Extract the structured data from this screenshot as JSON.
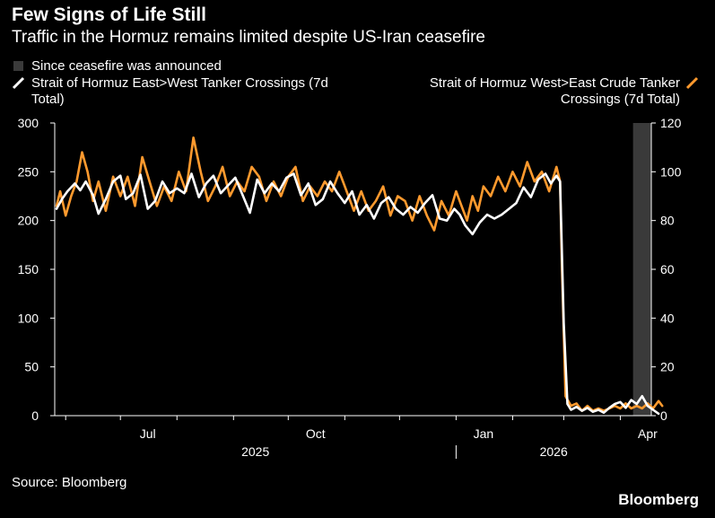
{
  "header": {
    "title": "Few Signs of Life Still",
    "subtitle": "Traffic in the Hormuz remains limited despite US-Iran ceasefire"
  },
  "legend": {
    "shade_label": "Since ceasefire was announced",
    "white_label": "Strait of Hormuz East>West Tanker Crossings (7d Total)",
    "orange_label": "Strait of Hormuz West>East Crude Tanker Crossings (7d Total)"
  },
  "footer": {
    "source": "Source: Bloomberg",
    "brand": "Bloomberg"
  },
  "colors": {
    "background": "#000000",
    "white_series": "#ffffff",
    "orange_series": "#ff9a2e",
    "shade": "#3a3a3a",
    "axis_text": "#ffffff"
  },
  "chart_data": {
    "type": "line",
    "x_ticks": [
      "Jul",
      "Oct",
      "Jan",
      "Apr"
    ],
    "x_tick_values": [
      "2025-07-01",
      "2025-10-01",
      "2026-01-01",
      "2026-04-01"
    ],
    "year_labels": [
      "2025",
      "2026"
    ],
    "x_range": [
      "2025-05-26",
      "2026-04-18"
    ],
    "y_left": {
      "lim": [
        0,
        300
      ],
      "ticks": [
        0,
        50,
        100,
        150,
        200,
        250,
        300
      ]
    },
    "y_right": {
      "lim": [
        0,
        120
      ],
      "ticks": [
        0,
        20,
        40,
        60,
        80,
        100,
        120
      ]
    },
    "shaded_region": {
      "label": "Since ceasefire was announced",
      "start": "2026-04-08",
      "end": "2026-04-24"
    },
    "series": [
      {
        "name": "Strait of Hormuz East>West Tanker Crossings (7d Total)",
        "axis": "left",
        "color": "#ffffff",
        "points": [
          [
            "2025-05-27",
            212
          ],
          [
            "2025-05-30",
            222
          ],
          [
            "2025-06-02",
            230
          ],
          [
            "2025-06-06",
            238
          ],
          [
            "2025-06-09",
            231
          ],
          [
            "2025-06-12",
            240
          ],
          [
            "2025-06-16",
            226
          ],
          [
            "2025-06-19",
            207
          ],
          [
            "2025-06-23",
            222
          ],
          [
            "2025-06-27",
            240
          ],
          [
            "2025-07-01",
            246
          ],
          [
            "2025-07-04",
            222
          ],
          [
            "2025-07-08",
            228
          ],
          [
            "2025-07-12",
            247
          ],
          [
            "2025-07-16",
            212
          ],
          [
            "2025-07-20",
            220
          ],
          [
            "2025-07-24",
            240
          ],
          [
            "2025-07-28",
            228
          ],
          [
            "2025-08-01",
            233
          ],
          [
            "2025-08-05",
            228
          ],
          [
            "2025-08-09",
            248
          ],
          [
            "2025-08-13",
            224
          ],
          [
            "2025-08-17",
            238
          ],
          [
            "2025-08-21",
            246
          ],
          [
            "2025-08-25",
            228
          ],
          [
            "2025-08-29",
            236
          ],
          [
            "2025-09-02",
            244
          ],
          [
            "2025-09-06",
            226
          ],
          [
            "2025-09-10",
            208
          ],
          [
            "2025-09-14",
            242
          ],
          [
            "2025-09-18",
            228
          ],
          [
            "2025-09-22",
            238
          ],
          [
            "2025-09-26",
            230
          ],
          [
            "2025-09-30",
            244
          ],
          [
            "2025-10-04",
            248
          ],
          [
            "2025-10-08",
            226
          ],
          [
            "2025-10-12",
            238
          ],
          [
            "2025-10-16",
            216
          ],
          [
            "2025-10-20",
            222
          ],
          [
            "2025-10-24",
            240
          ],
          [
            "2025-10-28",
            228
          ],
          [
            "2025-11-01",
            218
          ],
          [
            "2025-11-05",
            230
          ],
          [
            "2025-11-09",
            206
          ],
          [
            "2025-11-13",
            216
          ],
          [
            "2025-11-17",
            202
          ],
          [
            "2025-11-21",
            218
          ],
          [
            "2025-11-25",
            224
          ],
          [
            "2025-11-29",
            212
          ],
          [
            "2025-12-03",
            206
          ],
          [
            "2025-12-07",
            214
          ],
          [
            "2025-12-11",
            208
          ],
          [
            "2025-12-15",
            218
          ],
          [
            "2025-12-19",
            226
          ],
          [
            "2025-12-23",
            202
          ],
          [
            "2025-12-27",
            200
          ],
          [
            "2025-12-31",
            212
          ],
          [
            "2026-01-03",
            206
          ],
          [
            "2026-01-06",
            195
          ],
          [
            "2026-01-10",
            186
          ],
          [
            "2026-01-14",
            198
          ],
          [
            "2026-01-18",
            206
          ],
          [
            "2026-01-22",
            202
          ],
          [
            "2026-01-26",
            206
          ],
          [
            "2026-01-30",
            212
          ],
          [
            "2026-02-03",
            218
          ],
          [
            "2026-02-07",
            234
          ],
          [
            "2026-02-11",
            224
          ],
          [
            "2026-02-15",
            242
          ],
          [
            "2026-02-19",
            248
          ],
          [
            "2026-02-22",
            238
          ],
          [
            "2026-02-25",
            246
          ],
          [
            "2026-02-27",
            240
          ],
          [
            "2026-03-01",
            95
          ],
          [
            "2026-03-03",
            12
          ],
          [
            "2026-03-05",
            6
          ],
          [
            "2026-03-08",
            9
          ],
          [
            "2026-03-11",
            5
          ],
          [
            "2026-03-14",
            8
          ],
          [
            "2026-03-17",
            4
          ],
          [
            "2026-03-20",
            6
          ],
          [
            "2026-03-23",
            3
          ],
          [
            "2026-03-26",
            8
          ],
          [
            "2026-03-29",
            12
          ],
          [
            "2026-04-01",
            14
          ],
          [
            "2026-04-04",
            8
          ],
          [
            "2026-04-07",
            16
          ],
          [
            "2026-04-10",
            12
          ],
          [
            "2026-04-13",
            20
          ],
          [
            "2026-04-16",
            10
          ],
          [
            "2026-04-19",
            6
          ],
          [
            "2026-04-22",
            2
          ]
        ]
      },
      {
        "name": "Strait of Hormuz West>East Crude Tanker Crossings (7d Total)",
        "axis": "right",
        "color": "#ff9a2e",
        "points": [
          [
            "2025-05-27",
            86
          ],
          [
            "2025-05-29",
            92
          ],
          [
            "2025-06-01",
            82
          ],
          [
            "2025-06-04",
            90
          ],
          [
            "2025-06-07",
            96
          ],
          [
            "2025-06-10",
            108
          ],
          [
            "2025-06-13",
            100
          ],
          [
            "2025-06-16",
            88
          ],
          [
            "2025-06-19",
            96
          ],
          [
            "2025-06-23",
            84
          ],
          [
            "2025-06-27",
            98
          ],
          [
            "2025-07-01",
            90
          ],
          [
            "2025-07-05",
            98
          ],
          [
            "2025-07-09",
            86
          ],
          [
            "2025-07-13",
            106
          ],
          [
            "2025-07-17",
            96
          ],
          [
            "2025-07-21",
            86
          ],
          [
            "2025-07-25",
            94
          ],
          [
            "2025-07-29",
            88
          ],
          [
            "2025-08-02",
            100
          ],
          [
            "2025-08-06",
            92
          ],
          [
            "2025-08-10",
            114
          ],
          [
            "2025-08-14",
            100
          ],
          [
            "2025-08-18",
            88
          ],
          [
            "2025-08-22",
            94
          ],
          [
            "2025-08-26",
            102
          ],
          [
            "2025-08-30",
            90
          ],
          [
            "2025-09-03",
            96
          ],
          [
            "2025-09-07",
            92
          ],
          [
            "2025-09-11",
            102
          ],
          [
            "2025-09-15",
            98
          ],
          [
            "2025-09-19",
            88
          ],
          [
            "2025-09-23",
            96
          ],
          [
            "2025-09-27",
            90
          ],
          [
            "2025-10-01",
            98
          ],
          [
            "2025-10-05",
            102
          ],
          [
            "2025-10-09",
            88
          ],
          [
            "2025-10-13",
            94
          ],
          [
            "2025-10-17",
            90
          ],
          [
            "2025-10-21",
            96
          ],
          [
            "2025-10-25",
            92
          ],
          [
            "2025-10-29",
            100
          ],
          [
            "2025-11-02",
            92
          ],
          [
            "2025-11-06",
            84
          ],
          [
            "2025-11-10",
            92
          ],
          [
            "2025-11-14",
            84
          ],
          [
            "2025-11-18",
            88
          ],
          [
            "2025-11-22",
            94
          ],
          [
            "2025-11-26",
            82
          ],
          [
            "2025-11-30",
            90
          ],
          [
            "2025-12-04",
            88
          ],
          [
            "2025-12-08",
            80
          ],
          [
            "2025-12-12",
            90
          ],
          [
            "2025-12-16",
            82
          ],
          [
            "2025-12-20",
            76
          ],
          [
            "2025-12-24",
            88
          ],
          [
            "2025-12-28",
            82
          ],
          [
            "2026-01-01",
            92
          ],
          [
            "2026-01-04",
            86
          ],
          [
            "2026-01-07",
            80
          ],
          [
            "2026-01-10",
            90
          ],
          [
            "2026-01-13",
            84
          ],
          [
            "2026-01-16",
            94
          ],
          [
            "2026-01-20",
            90
          ],
          [
            "2026-01-24",
            98
          ],
          [
            "2026-01-28",
            92
          ],
          [
            "2026-02-01",
            100
          ],
          [
            "2026-02-05",
            94
          ],
          [
            "2026-02-09",
            104
          ],
          [
            "2026-02-13",
            96
          ],
          [
            "2026-02-17",
            100
          ],
          [
            "2026-02-21",
            92
          ],
          [
            "2026-02-25",
            102
          ],
          [
            "2026-02-27",
            96
          ],
          [
            "2026-02-28",
            60
          ],
          [
            "2026-03-02",
            8
          ],
          [
            "2026-03-05",
            4
          ],
          [
            "2026-03-08",
            5
          ],
          [
            "2026-03-11",
            2
          ],
          [
            "2026-03-14",
            4
          ],
          [
            "2026-03-17",
            2
          ],
          [
            "2026-03-20",
            3
          ],
          [
            "2026-03-23",
            2
          ],
          [
            "2026-03-26",
            3
          ],
          [
            "2026-03-29",
            4
          ],
          [
            "2026-04-01",
            3
          ],
          [
            "2026-04-04",
            5
          ],
          [
            "2026-04-07",
            3
          ],
          [
            "2026-04-10",
            4
          ],
          [
            "2026-04-13",
            3
          ],
          [
            "2026-04-16",
            5
          ],
          [
            "2026-04-19",
            3
          ],
          [
            "2026-04-22",
            6
          ],
          [
            "2026-04-24",
            4
          ]
        ]
      }
    ]
  }
}
